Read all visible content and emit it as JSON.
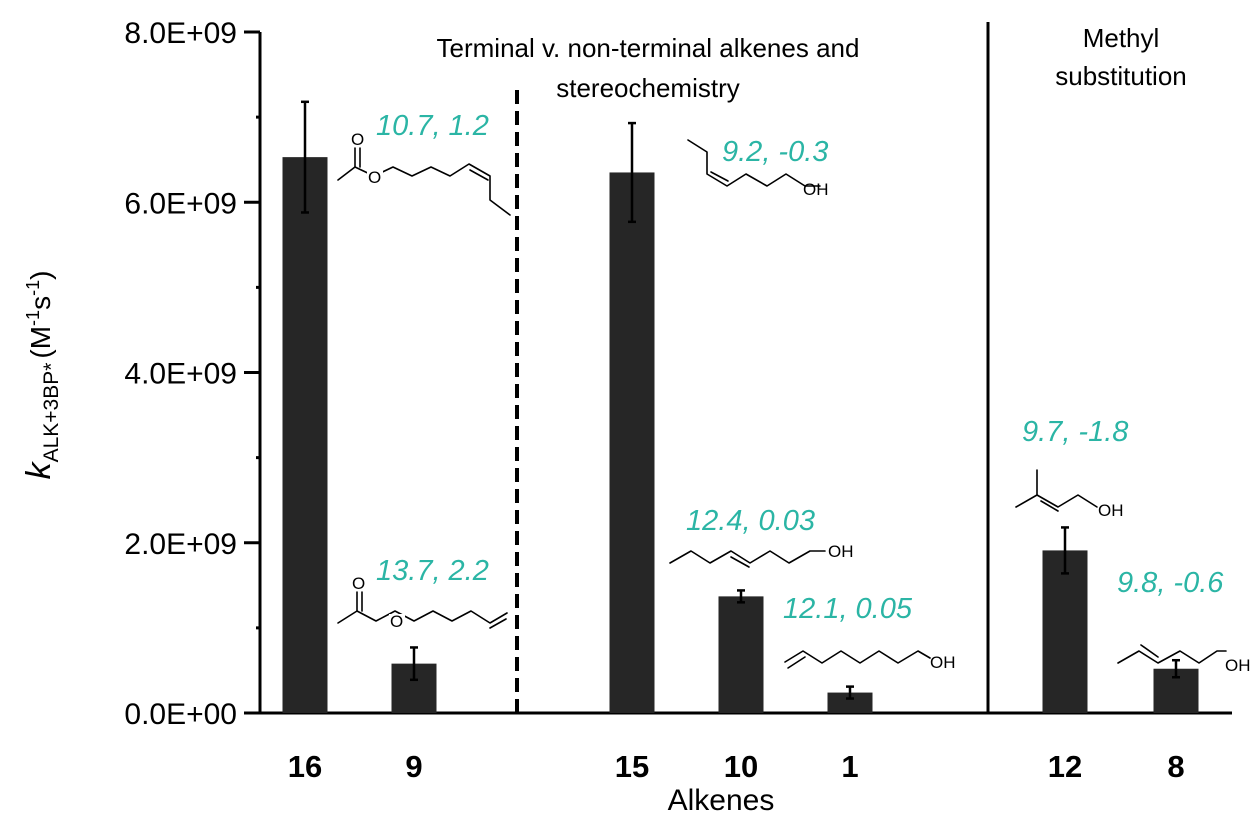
{
  "chart_data": {
    "type": "bar",
    "categories": [
      "16",
      "9",
      "15",
      "10",
      "1",
      "12",
      "8"
    ],
    "values": [
      6530000000.0,
      580000000.0,
      6350000000.0,
      1370000000.0,
      240000000.0,
      1910000000.0,
      520000000.0
    ],
    "errors": [
      650000000.0,
      190000000.0,
      580000000.0,
      70000000.0,
      70000000.0,
      270000000.0,
      100000000.0
    ],
    "xlabel": "Alkenes",
    "ylabel": "k_ALK+3BP* (M-1s-1)",
    "ylabel_parts": {
      "k": "k",
      "sub": "ALK+3BP*",
      "unit_a": "(M",
      "sup1": "-1",
      "unit_b": "s",
      "sup2": "-1",
      "unit_c": ")"
    },
    "ylim": [
      0,
      8000000000.0
    ],
    "yticks": [
      "0.0E+00",
      "2.0E+09",
      "4.0E+09",
      "6.0E+09",
      "8.0E+09"
    ],
    "grid": false,
    "bar_color": "#262626",
    "annotation_color": "#2bb5a5",
    "sections": [
      {
        "title_line1": "Terminal v. non-terminal alkenes and",
        "title_line2": "stereochemistry"
      },
      {
        "title_line1": "Methyl",
        "title_line2": "substitution"
      }
    ],
    "annotations": [
      "10.7, 1.2",
      "13.7, 2.2",
      "9.2, -0.3",
      "12.4, 0.03",
      "12.1, 0.05",
      "9.7, -1.8",
      "9.8, -0.6"
    ],
    "structure_labels": {
      "ester_O": "O",
      "OH": "OH"
    }
  }
}
